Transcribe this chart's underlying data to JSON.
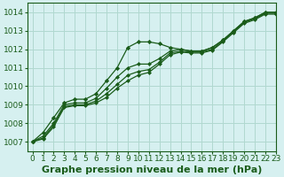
{
  "title": "Graphe pression niveau de la mer (hPa)",
  "bg_color": "#d6f0f0",
  "grid_color": "#b0d8d0",
  "line_color": "#1a5c1a",
  "marker_color": "#1a5c1a",
  "xlim": [
    -0.5,
    23
  ],
  "ylim": [
    1006.5,
    1014.5
  ],
  "yticks": [
    1007,
    1008,
    1009,
    1010,
    1011,
    1012,
    1013,
    1014
  ],
  "xticks": [
    0,
    1,
    2,
    3,
    4,
    5,
    6,
    7,
    8,
    9,
    10,
    11,
    12,
    13,
    14,
    15,
    16,
    17,
    18,
    19,
    20,
    21,
    22,
    23
  ],
  "series": [
    [
      1007.0,
      1007.5,
      1008.3,
      1009.1,
      1009.3,
      1009.3,
      1009.6,
      1010.3,
      1011.0,
      1012.1,
      1012.4,
      1012.4,
      1012.3,
      1012.1,
      1012.0,
      1011.9,
      1011.9,
      1012.1,
      1012.5,
      1013.0,
      1013.5,
      1013.7,
      1014.0,
      1014.0
    ],
    [
      1007.0,
      1007.3,
      1008.0,
      1009.0,
      1009.1,
      1009.1,
      1009.35,
      1009.9,
      1010.5,
      1011.0,
      1011.2,
      1011.2,
      1011.5,
      1011.9,
      1012.0,
      1011.9,
      1011.9,
      1012.1,
      1012.5,
      1013.0,
      1013.5,
      1013.7,
      1014.0,
      1014.0
    ],
    [
      1007.0,
      1007.2,
      1007.9,
      1008.9,
      1009.0,
      1009.0,
      1009.2,
      1009.6,
      1010.1,
      1010.6,
      1010.8,
      1010.9,
      1011.3,
      1011.8,
      1011.9,
      1011.85,
      1011.85,
      1012.0,
      1012.45,
      1012.95,
      1013.45,
      1013.65,
      1013.95,
      1013.95
    ],
    [
      1007.0,
      1007.15,
      1007.8,
      1008.85,
      1008.95,
      1008.95,
      1009.1,
      1009.4,
      1009.9,
      1010.3,
      1010.6,
      1010.75,
      1011.2,
      1011.7,
      1011.85,
      1011.8,
      1011.8,
      1011.95,
      1012.4,
      1012.9,
      1013.4,
      1013.6,
      1013.9,
      1013.9
    ]
  ],
  "title_fontsize": 8,
  "tick_fontsize": 6.5
}
